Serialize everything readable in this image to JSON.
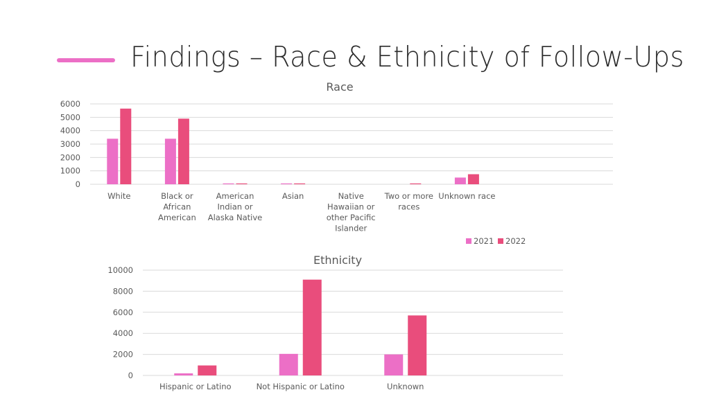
{
  "slide": {
    "title": "Findings – Race & Ethnicity of Follow-Ups"
  },
  "colors": {
    "accent": "#EC6FC6",
    "series_2021": "#EC6FC6",
    "series_2022": "#E94D7C",
    "grid": "#D9D9D9",
    "text": "#595959"
  },
  "chart_data": [
    {
      "type": "bar",
      "title": "Race",
      "categories": [
        [
          "White"
        ],
        [
          "Black or",
          "African",
          "American"
        ],
        [
          "American",
          "Indian or",
          "Alaska Native"
        ],
        [
          "Asian"
        ],
        [
          "Native",
          "Hawaiian or",
          "other Pacific",
          "Islander"
        ],
        [
          "Two or more",
          "races"
        ],
        [
          "Unknown race"
        ]
      ],
      "series": [
        {
          "name": "2021",
          "values": [
            3400,
            3400,
            60,
            60,
            0,
            0,
            500
          ]
        },
        {
          "name": "2022",
          "values": [
            5650,
            4900,
            60,
            30,
            0,
            20,
            750
          ]
        }
      ],
      "ylim": [
        0,
        6000
      ],
      "yticks": [
        0,
        1000,
        2000,
        3000,
        4000,
        5000,
        6000
      ],
      "grid": true,
      "legend": "bottom-right",
      "xlabel": "",
      "ylabel": ""
    },
    {
      "type": "bar",
      "title": "Ethnicity",
      "categories": [
        [
          "Hispanic or Latino"
        ],
        [
          "Not Hispanic or Latino"
        ],
        [
          "Unknown"
        ]
      ],
      "series": [
        {
          "name": "2021",
          "values": [
            200,
            2050,
            2000
          ]
        },
        {
          "name": "2022",
          "values": [
            950,
            9100,
            5700
          ]
        }
      ],
      "ylim": [
        0,
        10000
      ],
      "yticks": [
        0,
        2000,
        4000,
        6000,
        8000,
        10000
      ],
      "grid": true,
      "legend": "none",
      "xlabel": "",
      "ylabel": ""
    }
  ]
}
